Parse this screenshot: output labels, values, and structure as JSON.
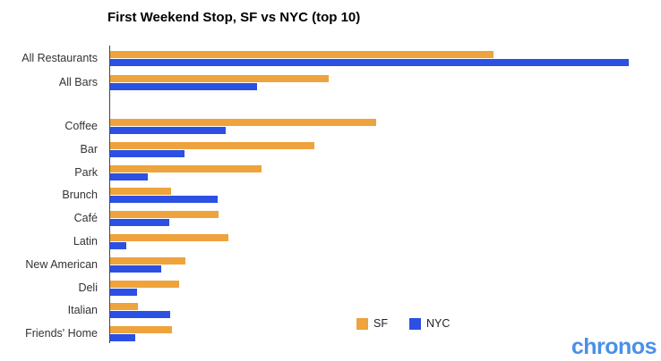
{
  "title": "First Weekend Stop, SF vs NYC (top 10)",
  "legend": {
    "items": [
      {
        "label": "SF",
        "color": "#EFA33C"
      },
      {
        "label": "NYC",
        "color": "#2B50E3"
      }
    ]
  },
  "logo": {
    "text": "chronos",
    "color": "#4a90e8"
  },
  "chart_data": {
    "type": "bar",
    "orientation": "horizontal",
    "title": "First Weekend Stop, SF vs NYC (top 10)",
    "categories": [
      "All Restaurants",
      "All Bars",
      "Coffee",
      "Bar",
      "Park",
      "Brunch",
      "Café",
      "Latin",
      "New American",
      "Deli",
      "Italian",
      "Friends' Home"
    ],
    "group_break_after_index": 1,
    "series": [
      {
        "name": "SF",
        "color": "#EFA33C",
        "values": [
          73.9,
          42.1,
          51.3,
          39.4,
          29.2,
          11.7,
          20.9,
          22.8,
          14.5,
          13.3,
          5.4,
          11.9
        ]
      },
      {
        "name": "NYC",
        "color": "#2B50E3",
        "values": [
          100.0,
          28.3,
          22.3,
          14.3,
          7.3,
          20.7,
          11.4,
          3.1,
          9.8,
          5.2,
          11.6,
          4.8
        ]
      }
    ],
    "xlim": [
      0,
      100
    ],
    "x_axis_labels": "none",
    "grid": false,
    "legend_position": "bottom-center",
    "value_note": "relative bar lengths; axis is unlabeled in the image, NYC All Restaurants normalized to 100"
  }
}
